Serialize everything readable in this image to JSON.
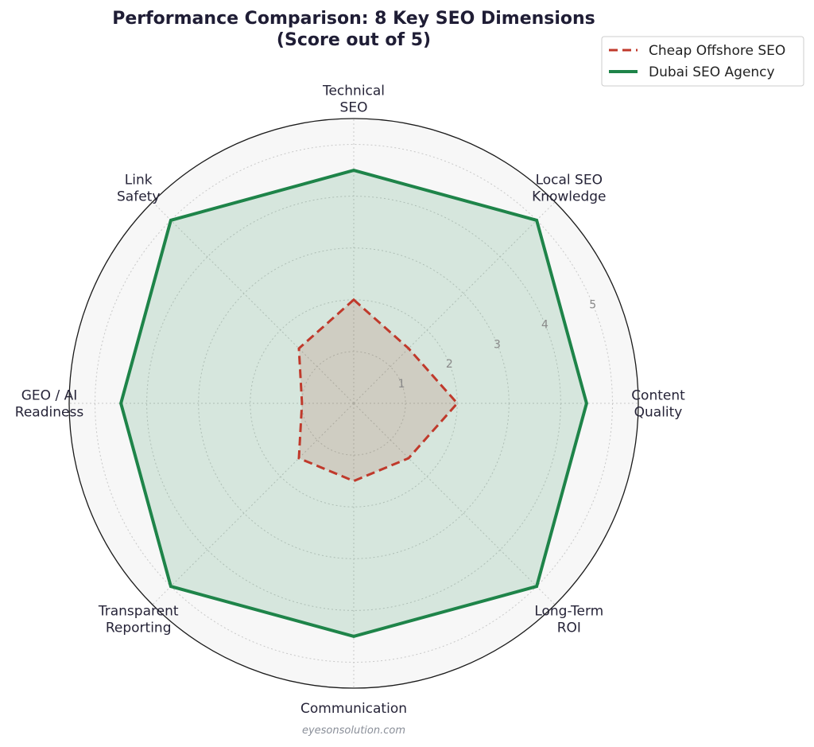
{
  "chart_data": {
    "type": "radar",
    "title": "Performance Comparison: 8 Key SEO Dimensions",
    "subtitle": "(Score out of 5)",
    "categories": [
      "Technical SEO",
      "Local SEO Knowledge",
      "Content Quality",
      "Long-Term ROI",
      "Communication",
      "Transparent Reporting",
      "GEO / AI Readiness",
      "Link Safety"
    ],
    "category_lines": [
      [
        "Technical",
        "SEO"
      ],
      [
        "Local SEO",
        "Knowledge"
      ],
      [
        "Content",
        "Quality"
      ],
      [
        "Long-Term",
        "ROI"
      ],
      [
        "Communication"
      ],
      [
        "Transparent",
        "Reporting"
      ],
      [
        "GEO / AI",
        "Readiness"
      ],
      [
        "Link",
        "Safety"
      ]
    ],
    "series": [
      {
        "name": "Cheap Offshore SEO",
        "values": [
          2,
          1.5,
          2,
          1.5,
          1.5,
          1.5,
          1,
          1.5
        ],
        "color": "#c0392b",
        "line_style": "dashed"
      },
      {
        "name": "Dubai SEO Agency",
        "values": [
          4.5,
          5,
          4.5,
          5,
          4.5,
          5,
          4.5,
          5
        ],
        "color": "#1e8449",
        "line_style": "solid"
      }
    ],
    "r_ticks": [
      "1",
      "2",
      "3",
      "4",
      "5"
    ],
    "rlim": [
      0,
      5.5
    ],
    "grid": true,
    "legend_position": "top-right"
  },
  "footer": {
    "watermark": "eyesonsolution.com"
  }
}
